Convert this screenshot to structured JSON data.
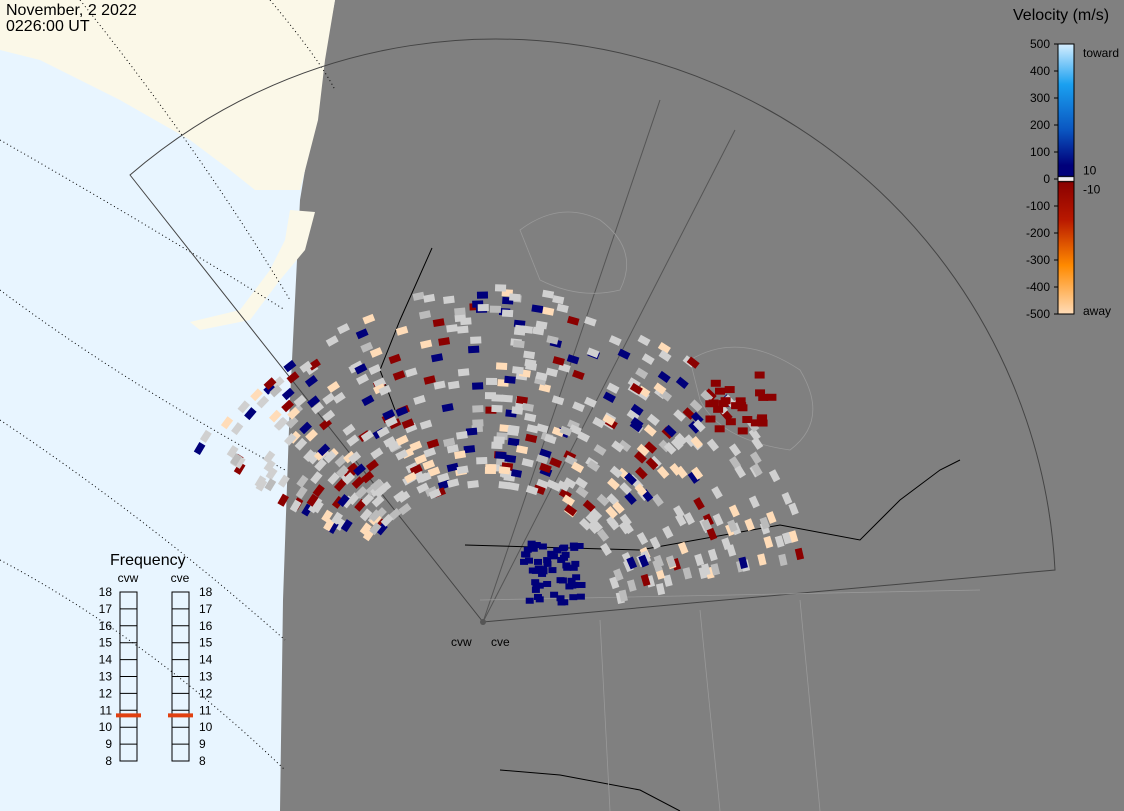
{
  "header": {
    "date": "November, 2 2022",
    "time": "0226:00 UT"
  },
  "colorbar": {
    "title": "Velocity (m/s)",
    "ylim": [
      -500,
      500
    ],
    "yticks": [
      500,
      400,
      300,
      200,
      100,
      0,
      -100,
      -200,
      -300,
      -400,
      -500
    ],
    "toward": "toward",
    "away": "away",
    "inner_ticks": [
      10,
      -10
    ]
  },
  "frequency": {
    "title": "Frequency",
    "ylim": [
      8,
      18
    ],
    "yticks": [
      8,
      9,
      10,
      11,
      12,
      13,
      14,
      15,
      16,
      17,
      18
    ],
    "radars": [
      {
        "name": "cvw",
        "value": 10.7
      },
      {
        "name": "cve",
        "value": 10.7
      }
    ]
  },
  "sites": [
    "cvw",
    "cve"
  ]
}
